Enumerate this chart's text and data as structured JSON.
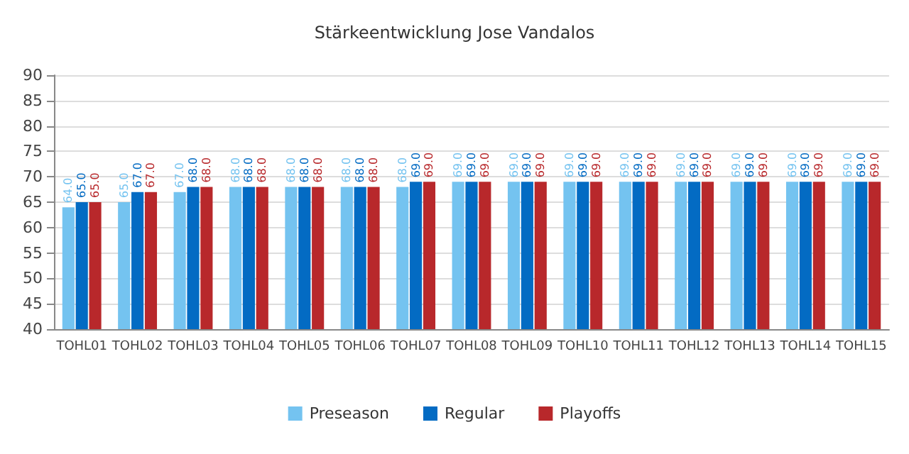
{
  "chart_data": {
    "type": "bar",
    "title": "Stärkeentwicklung Jose Vandalos",
    "categories": [
      "TOHL01",
      "TOHL02",
      "TOHL03",
      "TOHL04",
      "TOHL05",
      "TOHL06",
      "TOHL07",
      "TOHL08",
      "TOHL09",
      "TOHL10",
      "TOHL11",
      "TOHL12",
      "TOHL13",
      "TOHL14",
      "TOHL15"
    ],
    "series": [
      {
        "name": "Preseason",
        "color": "#74c3f0",
        "values": [
          64,
          65,
          67,
          68,
          68,
          68,
          68,
          69,
          69,
          69,
          69,
          69,
          69,
          69,
          69
        ],
        "value_labels": [
          "64.0",
          "65.0",
          "67.0",
          "68.0",
          "68.0",
          "68.0",
          "68.0",
          "69.0",
          "69.0",
          "69.0",
          "69.0",
          "69.0",
          "69.0",
          "69.0",
          "69.0"
        ]
      },
      {
        "name": "Regular",
        "color": "#036bc3",
        "values": [
          65,
          67,
          68,
          68,
          68,
          68,
          69,
          69,
          69,
          69,
          69,
          69,
          69,
          69,
          69
        ],
        "value_labels": [
          "65.0",
          "67.0",
          "68.0",
          "68.0",
          "68.0",
          "68.0",
          "69.0",
          "69.0",
          "69.0",
          "69.0",
          "69.0",
          "69.0",
          "69.0",
          "69.0",
          "69.0"
        ]
      },
      {
        "name": "Playoffs",
        "color": "#b8282b",
        "values": [
          65,
          67,
          68,
          68,
          68,
          68,
          69,
          69,
          69,
          69,
          69,
          69,
          69,
          69,
          69
        ],
        "value_labels": [
          "65.0",
          "67.0",
          "68.0",
          "68.0",
          "68.0",
          "68.0",
          "69.0",
          "69.0",
          "69.0",
          "69.0",
          "69.0",
          "69.0",
          "69.0",
          "69.0",
          "69.0"
        ]
      }
    ],
    "ylim": [
      40,
      90
    ],
    "yticks": [
      40,
      45,
      50,
      55,
      60,
      65,
      70,
      75,
      80,
      85,
      90
    ],
    "grid": "y",
    "legend": "bottom"
  }
}
